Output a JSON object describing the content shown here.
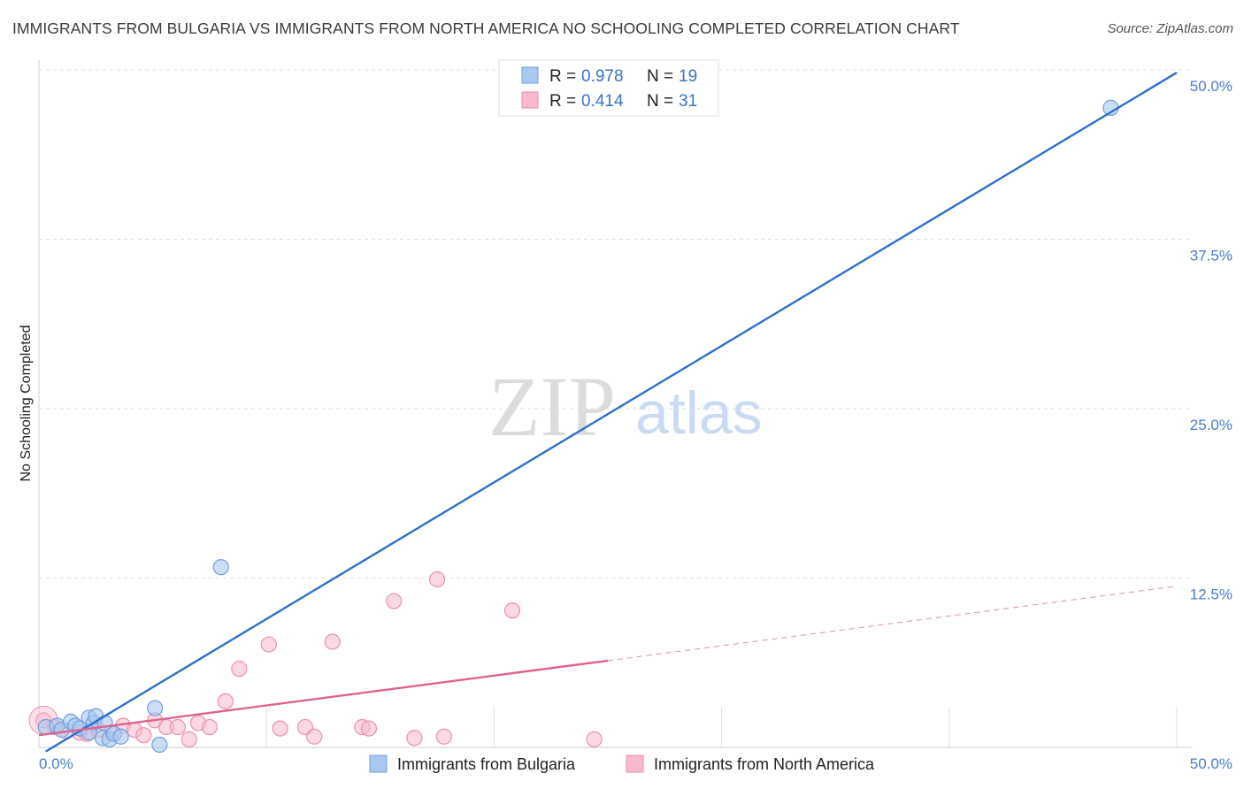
{
  "header": {
    "title": "IMMIGRANTS FROM BULGARIA VS IMMIGRANTS FROM NORTH AMERICA NO SCHOOLING COMPLETED CORRELATION CHART",
    "source": "Source: ZipAtlas.com"
  },
  "watermark": {
    "zip": "ZIP",
    "atlas": "atlas"
  },
  "colors": {
    "bulgaria_fill": "#a9c8ef",
    "bulgaria_stroke": "#6f9fdc",
    "bulgaria_line": "#2f6fcc",
    "na_fill": "#f7b9cc",
    "na_stroke": "#ec8fae",
    "na_line": "#e0628e",
    "tick_text": "#4a7cc8"
  },
  "chart_data": {
    "type": "scatter",
    "title": "IMMIGRANTS FROM BULGARIA VS IMMIGRANTS FROM NORTH AMERICA NO SCHOOLING COMPLETED CORRELATION CHART",
    "xlabel": "",
    "ylabel": "No Schooling Completed",
    "xlim": [
      0,
      50
    ],
    "ylim": [
      0,
      50
    ],
    "x_tick_labels": {
      "min": "0.0%",
      "max": "50.0%"
    },
    "y_ticks": [
      {
        "value": 12.5,
        "label": "12.5%"
      },
      {
        "value": 25.0,
        "label": "25.0%"
      },
      {
        "value": 37.5,
        "label": "37.5%"
      },
      {
        "value": 50.0,
        "label": "50.0%"
      }
    ],
    "x_minor_ticks": [
      10,
      20,
      30,
      40,
      50
    ],
    "grid": true,
    "legend_position": "top-center",
    "legend": [
      {
        "r_label": "R =",
        "r_value": "0.978",
        "n_label": "N =",
        "n_value": "19"
      },
      {
        "r_label": "R =",
        "r_value": "0.414",
        "n_label": "N =",
        "n_value": "31"
      }
    ],
    "series": [
      {
        "name": "Immigrants from Bulgaria",
        "points": [
          [
            0.3,
            1.5
          ],
          [
            0.8,
            1.6
          ],
          [
            1.0,
            1.3
          ],
          [
            1.4,
            1.9
          ],
          [
            1.6,
            1.6
          ],
          [
            1.8,
            1.4
          ],
          [
            2.2,
            2.2
          ],
          [
            2.4,
            1.8
          ],
          [
            2.5,
            2.3
          ],
          [
            2.9,
            1.8
          ],
          [
            2.2,
            1.1
          ],
          [
            2.8,
            0.7
          ],
          [
            3.1,
            0.6
          ],
          [
            3.3,
            1.0
          ],
          [
            3.6,
            0.8
          ],
          [
            5.1,
            2.9
          ],
          [
            5.3,
            0.2
          ],
          [
            8.0,
            13.3
          ],
          [
            47.1,
            47.2
          ]
        ],
        "trend": {
          "x0": 0.3,
          "y0": -0.3,
          "x1": 50.0,
          "y1": 49.8,
          "dashed_from": null
        }
      },
      {
        "name": "Immigrants from North America",
        "points": [
          [
            0.2,
            2.0
          ],
          [
            0.7,
            1.5
          ],
          [
            1.2,
            1.2
          ],
          [
            1.8,
            1.1
          ],
          [
            2.1,
            1.0
          ],
          [
            2.6,
            1.3
          ],
          [
            3.2,
            1.1
          ],
          [
            3.7,
            1.6
          ],
          [
            4.2,
            1.3
          ],
          [
            4.6,
            0.9
          ],
          [
            5.1,
            2.0
          ],
          [
            5.6,
            1.5
          ],
          [
            6.1,
            1.5
          ],
          [
            6.6,
            0.6
          ],
          [
            7.0,
            1.8
          ],
          [
            7.5,
            1.5
          ],
          [
            8.2,
            3.4
          ],
          [
            8.8,
            5.8
          ],
          [
            10.1,
            7.6
          ],
          [
            10.6,
            1.4
          ],
          [
            11.7,
            1.5
          ],
          [
            12.1,
            0.8
          ],
          [
            12.9,
            7.8
          ],
          [
            14.2,
            1.5
          ],
          [
            14.5,
            1.4
          ],
          [
            15.6,
            10.8
          ],
          [
            16.5,
            0.7
          ],
          [
            17.5,
            12.4
          ],
          [
            17.8,
            0.8
          ],
          [
            20.8,
            10.1
          ],
          [
            24.4,
            0.6
          ]
        ],
        "trend": {
          "x0": 0.0,
          "y0": 0.9,
          "x1": 50.0,
          "y1": 11.9,
          "dashed_from": 25.0
        }
      }
    ]
  }
}
